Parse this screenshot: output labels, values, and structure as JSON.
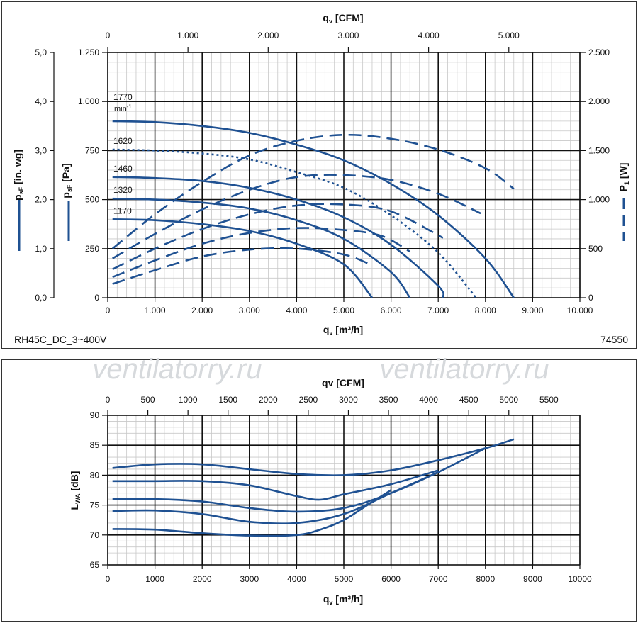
{
  "watermark": "ventilatorry.ru",
  "colors": {
    "curve": "#1f5192",
    "grid_major": "#111111",
    "grid_minor": "#c8c8c8",
    "watermark": "#d6d9dc"
  },
  "chart_data": [
    {
      "type": "line",
      "name": "pressure-power",
      "model_label": "RH45C_DC_3~400V",
      "code_label": "74550",
      "x_top_label": "CFM",
      "x_top_prefix": "q",
      "x_top_sub": "v",
      "x_top_ticks": [
        "0",
        "1.000",
        "2.000",
        "3.000",
        "4.000",
        "5.000"
      ],
      "x_top_values": [
        0,
        1000,
        2000,
        3000,
        4000,
        5000
      ],
      "x_top_factor": 1.699,
      "x_bottom_label": "m³/h",
      "x_bottom_prefix": "q",
      "x_bottom_sub": "v",
      "x_bottom_ticks": [
        "0",
        "1.000",
        "2.000",
        "3.000",
        "4.000",
        "5.000",
        "6.000",
        "7.000",
        "8.000",
        "9.000",
        "10.000"
      ],
      "xlim": [
        0,
        10000
      ],
      "y_pa_label": "p",
      "y_pa_sub": "sF",
      "y_pa_unit": "[Pa]",
      "y_pa_ticks": [
        "0",
        "250",
        "500",
        "750",
        "1.000",
        "1.250"
      ],
      "ylim": [
        0,
        1250
      ],
      "y_inwg_label": "p",
      "y_inwg_sub": "sF",
      "y_inwg_unit": "[in. wg]",
      "y_inwg_ticks": [
        "0,0",
        "1,0",
        "2,0",
        "3,0",
        "4,0",
        "5,0"
      ],
      "y_power_label": "P",
      "y_power_sub": "1",
      "y_power_unit": "[W]",
      "y_power_ticks": [
        "0",
        "500",
        "1.000",
        "1.500",
        "2.000",
        "2.500"
      ],
      "y_power_lim": [
        0,
        2500
      ],
      "speed_unit": "min",
      "speed_unit_exp": "-1",
      "pressure_series": [
        {
          "name": "1770",
          "style": "solid",
          "x": [
            100,
            1000,
            2000,
            3000,
            4000,
            5000,
            6000,
            7000,
            8000,
            8600
          ],
          "y": [
            900,
            895,
            875,
            840,
            780,
            700,
            580,
            420,
            200,
            0
          ]
        },
        {
          "name": "1620",
          "style": "dotted",
          "x": [
            100,
            1000,
            2000,
            3000,
            4000,
            5000,
            6000,
            7000,
            7800
          ],
          "y": [
            755,
            750,
            735,
            705,
            640,
            560,
            420,
            230,
            0
          ]
        },
        {
          "name": "1460",
          "style": "solid",
          "x": [
            100,
            1000,
            2000,
            3000,
            4000,
            5000,
            6000,
            7000,
            7100
          ],
          "y": [
            615,
            610,
            595,
            560,
            500,
            410,
            270,
            60,
            0
          ]
        },
        {
          "name": "1320",
          "style": "solid",
          "x": [
            100,
            1000,
            2000,
            3000,
            4000,
            5000,
            6000,
            6400
          ],
          "y": [
            505,
            500,
            485,
            455,
            395,
            300,
            130,
            0
          ]
        },
        {
          "name": "1170",
          "style": "solid",
          "x": [
            100,
            1000,
            2000,
            3000,
            4000,
            5000,
            5600
          ],
          "y": [
            400,
            395,
            375,
            340,
            275,
            170,
            0
          ]
        }
      ],
      "power_series": [
        {
          "name": "1770",
          "x": [
            100,
            1000,
            2000,
            3000,
            4000,
            5000,
            6000,
            7000,
            8000,
            8600
          ],
          "y": [
            500,
            850,
            1180,
            1450,
            1600,
            1660,
            1620,
            1510,
            1320,
            1110
          ]
        },
        {
          "name": "1620",
          "x": [
            100,
            1000,
            2000,
            3000,
            4000,
            5000,
            6000,
            7000,
            7900
          ],
          "y": [
            400,
            650,
            900,
            1100,
            1230,
            1250,
            1200,
            1060,
            860
          ]
        },
        {
          "name": "1460",
          "x": [
            100,
            1000,
            2000,
            3000,
            4000,
            5000,
            6000,
            7100
          ],
          "y": [
            290,
            500,
            700,
            850,
            940,
            950,
            880,
            610
          ]
        },
        {
          "name": "1320",
          "x": [
            100,
            1000,
            2000,
            3000,
            4000,
            5000,
            5800,
            6400
          ],
          "y": [
            210,
            380,
            550,
            660,
            710,
            690,
            630,
            470
          ]
        },
        {
          "name": "1170",
          "x": [
            100,
            1000,
            2000,
            3000,
            4000,
            5000,
            5600
          ],
          "y": [
            140,
            280,
            420,
            490,
            500,
            440,
            330
          ]
        }
      ]
    },
    {
      "type": "line",
      "name": "sound-power",
      "x_top_label": "qv [CFM]",
      "x_top_ticks": [
        "0",
        "500",
        "1000",
        "1500",
        "2000",
        "2500",
        "3000",
        "3500",
        "4000",
        "4500",
        "5000",
        "5500"
      ],
      "x_top_values": [
        0,
        500,
        1000,
        1500,
        2000,
        2500,
        3000,
        3500,
        4000,
        4500,
        5000,
        5500
      ],
      "x_top_factor": 1.699,
      "x_bottom_label": "m³/h",
      "x_bottom_prefix": "q",
      "x_bottom_sub": "v",
      "x_bottom_ticks": [
        "0",
        "1000",
        "2000",
        "3000",
        "4000",
        "5000",
        "6000",
        "7000",
        "8000",
        "9000",
        "10000"
      ],
      "xlim": [
        0,
        10000
      ],
      "ylabel": "L",
      "ylabel_sub": "WA",
      "ylabel_unit": "[dB]",
      "y_ticks": [
        "65",
        "70",
        "75",
        "80",
        "85",
        "90"
      ],
      "ylim": [
        65,
        90
      ],
      "series": [
        {
          "name": "1770",
          "x": [
            100,
            1000,
            2000,
            3000,
            4000,
            5000,
            6000,
            7000,
            8000,
            8600
          ],
          "y": [
            81.2,
            81.8,
            81.8,
            81.0,
            80.2,
            80.0,
            80.8,
            82.5,
            84.5,
            86.0
          ]
        },
        {
          "name": "1620",
          "x": [
            100,
            1000,
            2000,
            3000,
            4000,
            4500,
            5000,
            6000,
            7000
          ],
          "y": [
            79.0,
            79.0,
            79.0,
            78.3,
            76.5,
            75.9,
            76.8,
            78.5,
            80.8
          ]
        },
        {
          "name": "1460",
          "x": [
            100,
            1000,
            2000,
            3000,
            4000,
            5000,
            6000,
            7000,
            8000
          ],
          "y": [
            76.0,
            76.0,
            75.6,
            74.5,
            73.9,
            74.5,
            77.0,
            80.5,
            84.5
          ]
        },
        {
          "name": "1320",
          "x": [
            100,
            1000,
            2000,
            3000,
            4000,
            5000,
            6000,
            7000
          ],
          "y": [
            74.0,
            74.1,
            73.5,
            72.2,
            72.0,
            73.5,
            77.0,
            80.5
          ]
        },
        {
          "name": "1170",
          "x": [
            100,
            1000,
            2000,
            3000,
            4000,
            4500,
            5000,
            5500,
            6000
          ],
          "y": [
            71.0,
            70.9,
            70.3,
            69.9,
            70.0,
            70.9,
            72.5,
            75.0,
            77.5
          ]
        }
      ]
    }
  ]
}
